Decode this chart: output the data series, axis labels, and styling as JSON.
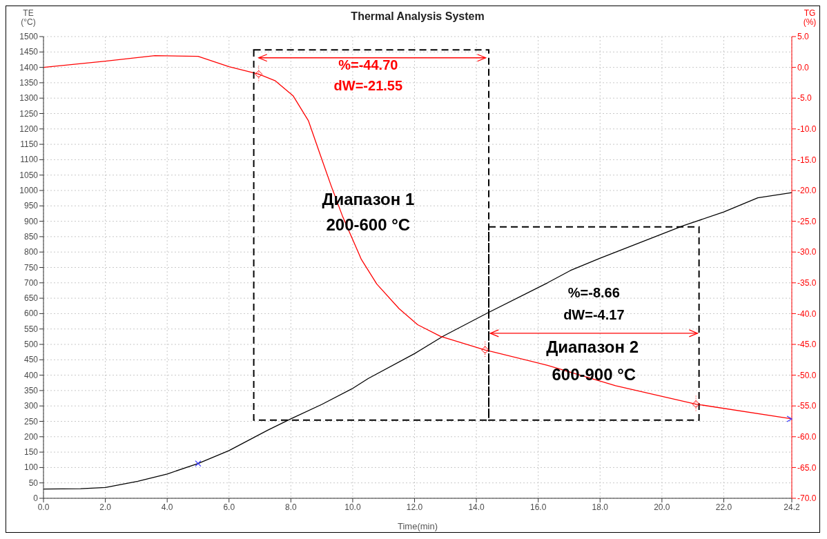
{
  "chart_data": {
    "type": "line",
    "title": "Thermal Analysis System",
    "xlabel": "Time(min)",
    "ylabel": "TE (°C)",
    "y2label": "TG (%)",
    "xlim": [
      0,
      24.2
    ],
    "xticks": [
      {
        "value": 0,
        "label": "0.0"
      },
      {
        "value": 2,
        "label": "2.0"
      },
      {
        "value": 4,
        "label": "4.0"
      },
      {
        "value": 6,
        "label": "6.0"
      },
      {
        "value": 8,
        "label": "8.0"
      },
      {
        "value": 10,
        "label": "10.0"
      },
      {
        "value": 12,
        "label": "12.0"
      },
      {
        "value": 14,
        "label": "14.0"
      },
      {
        "value": 16,
        "label": "16.0"
      },
      {
        "value": 18,
        "label": "18.0"
      },
      {
        "value": 20,
        "label": "20.0"
      },
      {
        "value": 22,
        "label": "22.0"
      },
      {
        "value": 24.2,
        "label": "24.2"
      }
    ],
    "ylim": [
      0,
      1500
    ],
    "yticks": [
      0,
      50,
      100,
      150,
      200,
      250,
      300,
      350,
      400,
      450,
      500,
      550,
      600,
      650,
      700,
      750,
      800,
      850,
      900,
      950,
      1000,
      1050,
      1100,
      1150,
      1200,
      1250,
      1300,
      1350,
      1400,
      1450,
      1500
    ],
    "y2lim": [
      -70,
      5
    ],
    "y2ticks": [
      {
        "value": 5,
        "label": "5.0"
      },
      {
        "value": 0,
        "label": "0.0"
      },
      {
        "value": -5,
        "label": "-5.0"
      },
      {
        "value": -10,
        "label": "-10.0"
      },
      {
        "value": -15,
        "label": "-15.0"
      },
      {
        "value": -20,
        "label": "-20.0"
      },
      {
        "value": -25,
        "label": "-25.0"
      },
      {
        "value": -30,
        "label": "-30.0"
      },
      {
        "value": -35,
        "label": "-35.0"
      },
      {
        "value": -40,
        "label": "-40.0"
      },
      {
        "value": -45,
        "label": "-45.0"
      },
      {
        "value": -50,
        "label": "-50.0"
      },
      {
        "value": -55,
        "label": "-55.0"
      },
      {
        "value": -60,
        "label": "-60.0"
      },
      {
        "value": -65,
        "label": "-65.0"
      },
      {
        "value": -70,
        "label": "-70.0"
      }
    ],
    "grid": true,
    "series": [
      {
        "color": "#000000",
        "x": [
          0,
          1.2,
          2,
          3.05,
          4,
          5,
          6,
          7.25,
          8,
          9,
          10,
          10.5,
          12,
          12.93,
          14.36,
          16.3,
          17.04,
          18,
          20.7,
          22,
          23.1,
          24.2
        ],
        "values": [
          30,
          31,
          35,
          55,
          79,
          113,
          155,
          221,
          258,
          305,
          357,
          389,
          470,
          527,
          602,
          700,
          740,
          780,
          886,
          930,
          976,
          993
        ]
      },
      {
        "color": "#ff0000",
        "axis": "y2",
        "x": [
          0,
          2,
          3.6,
          5,
          6,
          6.96,
          7.5,
          8.07,
          8.57,
          8.95,
          9.3,
          9.68,
          10.28,
          10.78,
          11.5,
          12.1,
          12.84,
          14.28,
          16.3,
          18.5,
          21.1,
          24.2
        ],
        "values": [
          0,
          1,
          1.9,
          1.8,
          0.1,
          -1.1,
          -2.2,
          -4.6,
          -8.7,
          -14.2,
          -19.2,
          -24.3,
          -31.2,
          -35.2,
          -39.2,
          -41.8,
          -43.7,
          -45.9,
          -48.4,
          -51.7,
          -54.7,
          -57.1
        ]
      }
    ],
    "annotations": [
      "%=-44.70",
      "dW=-21.55",
      "Диапазон 1",
      "200-600 °C",
      "%=-8.66",
      "dW=-4.17",
      "Диапазон 2",
      "600-900 °C"
    ]
  }
}
